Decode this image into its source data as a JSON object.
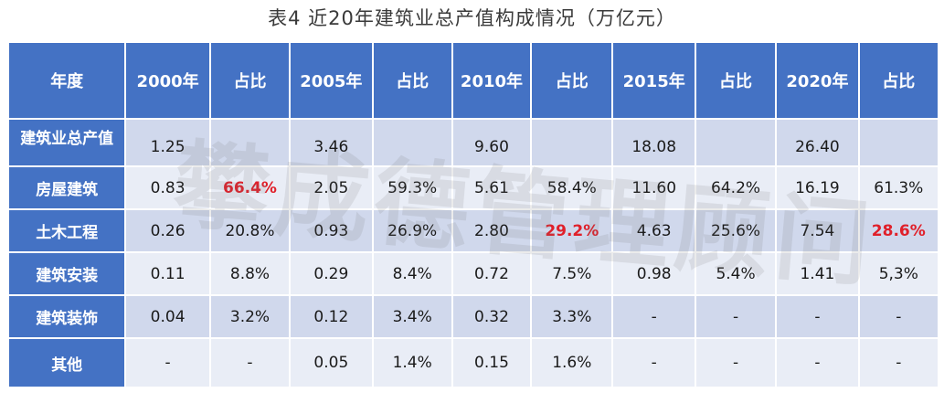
{
  "title": "表4 近20年建筑业总产值构成情况（万亿元）",
  "watermark": "攀成德管理顾问",
  "colors": {
    "header_bg": "#4472c4",
    "row_odd": "#d0d8ec",
    "row_even": "#e9edf6",
    "highlight": "#e0202a"
  },
  "chart_data": {
    "type": "table",
    "title": "表4 近20年建筑业总产值构成情况（万亿元）",
    "columns": [
      "年度",
      "2000年",
      "占比",
      "2005年",
      "占比",
      "2010年",
      "占比",
      "2015年",
      "占比",
      "2020年",
      "占比"
    ],
    "rows": [
      {
        "label": "建筑业总产值",
        "cells": [
          "1.25",
          "",
          "3.46",
          "",
          "9.60",
          "",
          "18.08",
          "",
          "26.40",
          ""
        ]
      },
      {
        "label": "房屋建筑",
        "cells": [
          "0.83",
          "66.4%",
          "2.05",
          "59.3%",
          "5.61",
          "58.4%",
          "11.60",
          "64.2%",
          "16.19",
          "61.3%"
        ]
      },
      {
        "label": "土木工程",
        "cells": [
          "0.26",
          "20.8%",
          "0.93",
          "26.9%",
          "2.80",
          "29.2%",
          "4.63",
          "25.6%",
          "7.54",
          "28.6%"
        ]
      },
      {
        "label": "建筑安装",
        "cells": [
          "0.11",
          "8.8%",
          "0.29",
          "8.4%",
          "0.72",
          "7.5%",
          "0.98",
          "5.4%",
          "1.41",
          "5,3%"
        ]
      },
      {
        "label": "建筑装饰",
        "cells": [
          "0.04",
          "3.2%",
          "0.12",
          "3.4%",
          "0.32",
          "3.3%",
          "-",
          "-",
          "-",
          "-"
        ]
      },
      {
        "label": "其他",
        "cells": [
          "-",
          "-",
          "0.05",
          "1.4%",
          "0.15",
          "1.6%",
          "-",
          "-",
          "-",
          "-"
        ]
      }
    ],
    "highlighted_cells": [
      {
        "row": 1,
        "col": 1
      },
      {
        "row": 2,
        "col": 5
      },
      {
        "row": 2,
        "col": 9
      }
    ]
  }
}
